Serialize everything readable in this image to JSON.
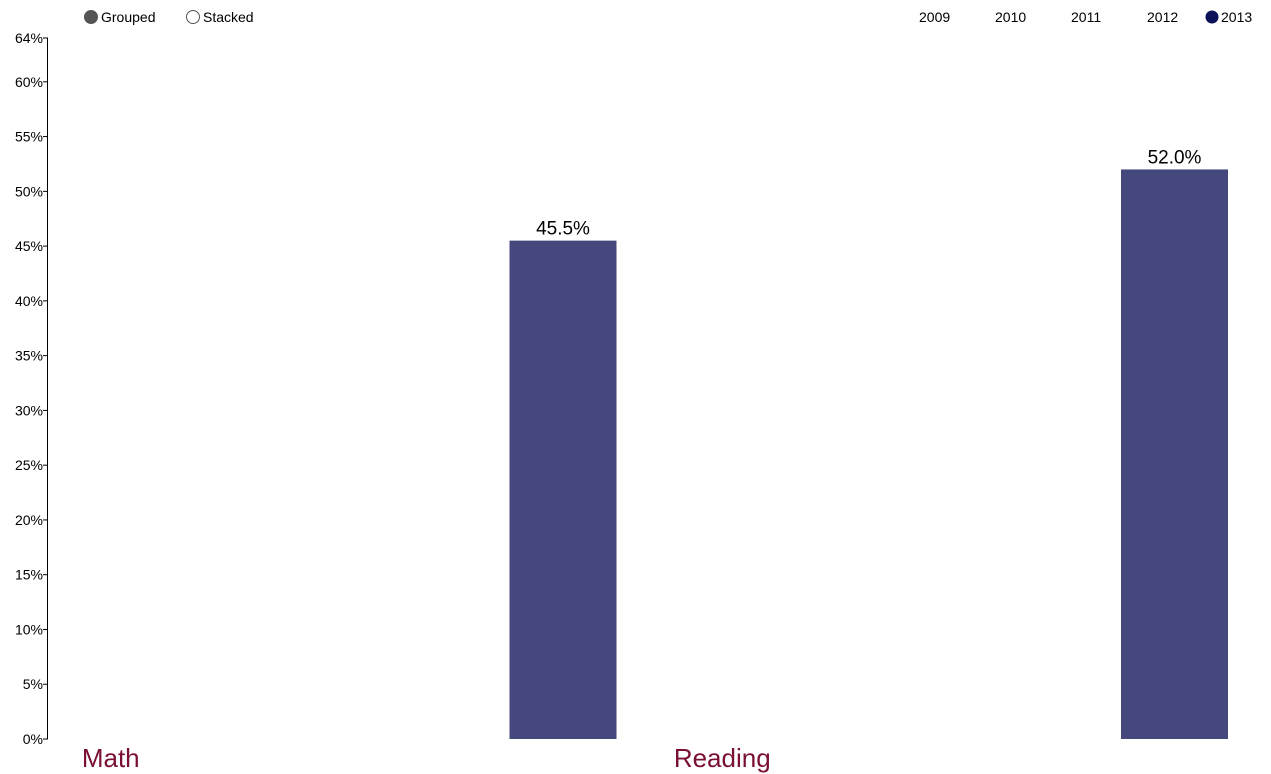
{
  "controls": {
    "layout_options": [
      {
        "label": "Grouped",
        "selected": true
      },
      {
        "label": "Stacked",
        "selected": false
      }
    ],
    "year_options": [
      {
        "label": "2009",
        "selected": false
      },
      {
        "label": "2010",
        "selected": false
      },
      {
        "label": "2011",
        "selected": false
      },
      {
        "label": "2012",
        "selected": false
      },
      {
        "label": "2013",
        "selected": true
      }
    ]
  },
  "colors": {
    "bar": "#44487c",
    "category_label": "#7a0f33",
    "radio_grouped_fill": "#555555",
    "radio_year_fill": "#0c1257",
    "axis": "#000000"
  },
  "chart_data": {
    "type": "bar",
    "categories": [
      "Math",
      "Reading"
    ],
    "series": [
      {
        "name": "2013",
        "values": [
          45.5,
          52.0
        ]
      }
    ],
    "value_labels": [
      "45.5%",
      "52.0%"
    ],
    "title": "",
    "xlabel": "",
    "ylabel": "",
    "ylim": [
      0,
      64
    ],
    "yticks": [
      "0%",
      "5%",
      "10%",
      "15%",
      "20%",
      "25%",
      "30%",
      "35%",
      "40%",
      "45%",
      "50%",
      "55%",
      "60%",
      "64%"
    ],
    "grid": false,
    "legend": "top-right"
  }
}
